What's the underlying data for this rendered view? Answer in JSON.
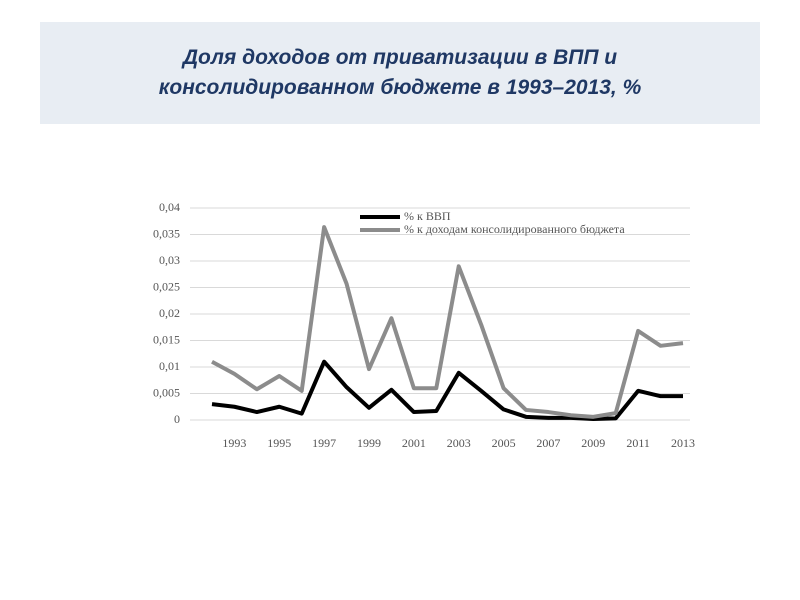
{
  "chart_data": {
    "type": "line",
    "title": "Доля доходов от приватизации в ВПП и консолидированном бюджете в 1993–2013, %",
    "x": [
      1992,
      1993,
      1994,
      1995,
      1996,
      1997,
      1998,
      1999,
      2000,
      2001,
      2002,
      2003,
      2004,
      2005,
      2006,
      2007,
      2008,
      2009,
      2010,
      2011,
      2012,
      2013
    ],
    "series": [
      {
        "name": "% к ВВП",
        "color": "#000000",
        "values": [
          0.003,
          0.0025,
          0.0015,
          0.0025,
          0.0012,
          0.011,
          0.0062,
          0.0023,
          0.0057,
          0.0015,
          0.0017,
          0.0089,
          0.0055,
          0.002,
          0.0006,
          0.0004,
          0.0004,
          0.0002,
          0.0003,
          0.0055,
          0.0045,
          0.0045
        ]
      },
      {
        "name": "% к доходам консолидированного бюджета",
        "color": "#8c8c8c",
        "values": [
          0.011,
          0.0087,
          0.0058,
          0.0083,
          0.0055,
          0.0364,
          0.0257,
          0.0096,
          0.0192,
          0.006,
          0.006,
          0.029,
          0.018,
          0.006,
          0.0019,
          0.0015,
          0.0009,
          0.0006,
          0.0013,
          0.0168,
          0.014,
          0.0145
        ]
      }
    ],
    "xlim": [
      1992,
      2013
    ],
    "xticks": [
      1993,
      1995,
      1997,
      1999,
      2001,
      2003,
      2005,
      2007,
      2009,
      2011,
      2013
    ],
    "ylim": [
      0,
      0.04
    ],
    "yticks": [
      0,
      {
        "value": 0.005,
        "label": "0,005"
      },
      {
        "value": 0.01,
        "label": "0,01"
      },
      {
        "value": 0.015,
        "label": "0,015"
      },
      {
        "value": 0.02,
        "label": "0,02"
      },
      {
        "value": 0.025,
        "label": "0,025"
      },
      {
        "value": 0.03,
        "label": "0,03"
      },
      {
        "value": 0.035,
        "label": "0,035"
      },
      {
        "value": 0.04,
        "label": "0,04"
      }
    ],
    "grid": true,
    "legend": "top"
  }
}
